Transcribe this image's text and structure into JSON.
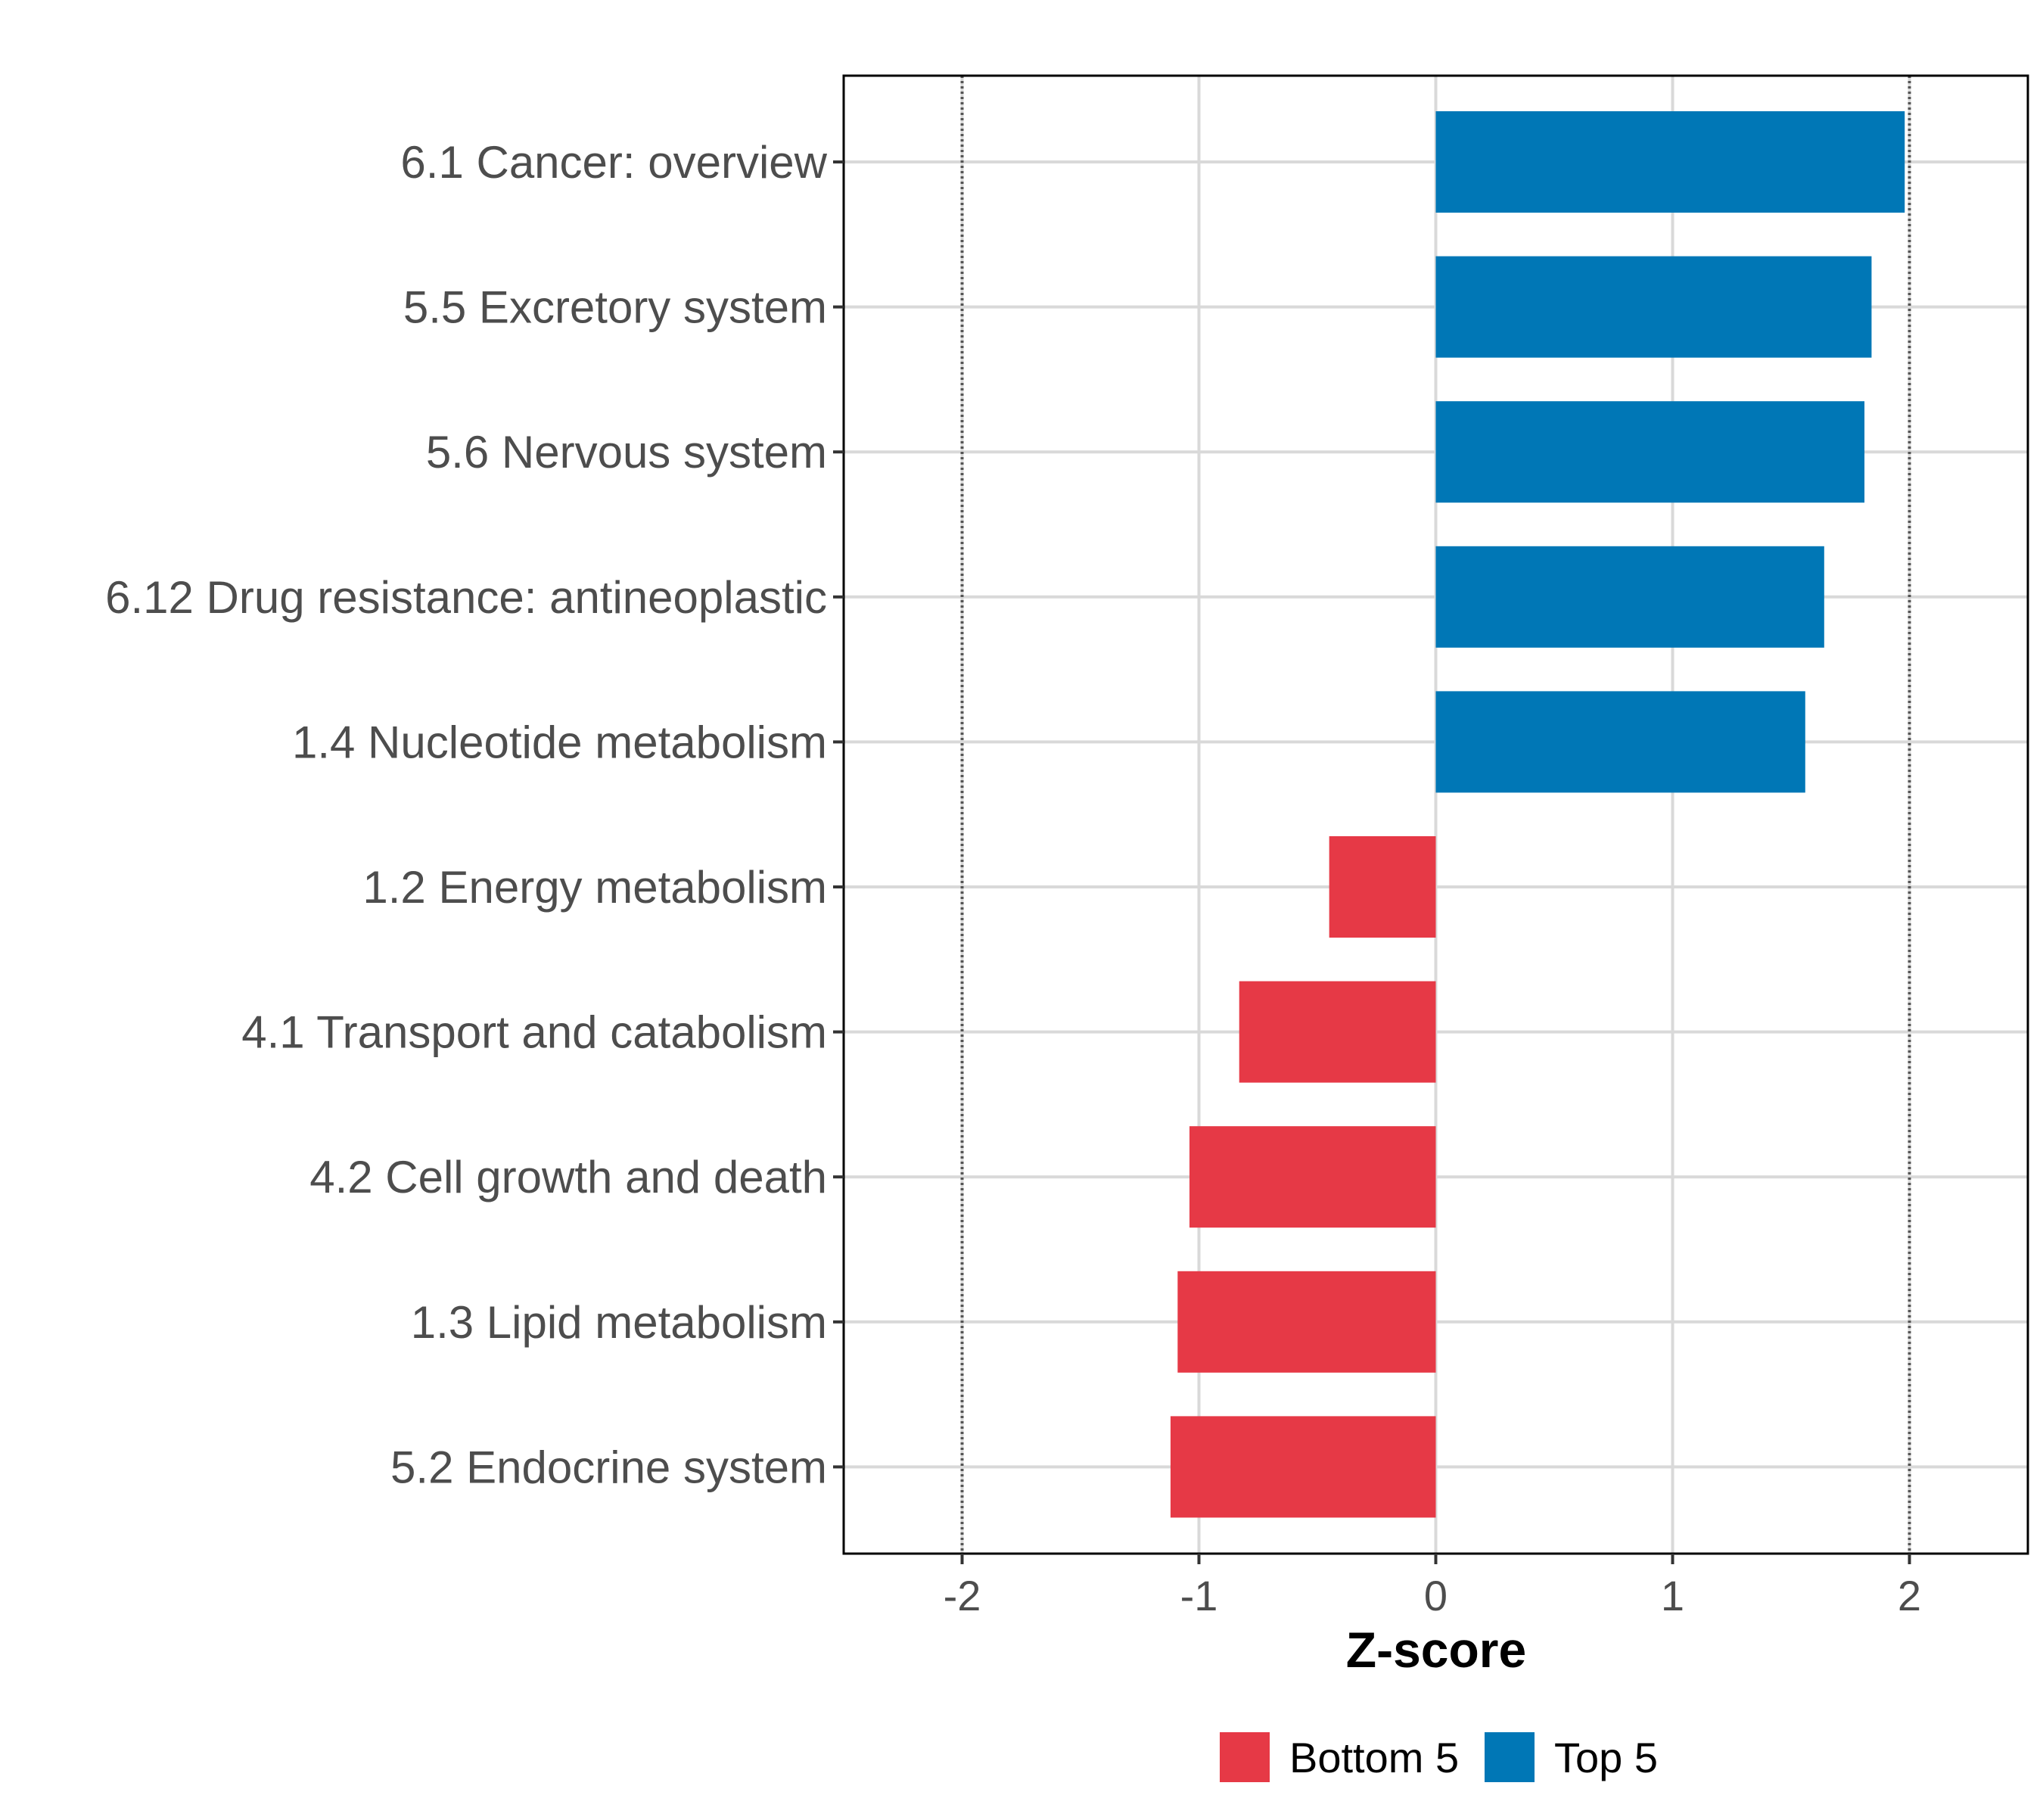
{
  "chart_data": {
    "type": "bar",
    "orientation": "horizontal",
    "title": "",
    "xlabel": "Z-score",
    "ylabel": "",
    "xlim": [
      -2.5,
      2.5
    ],
    "xticks": [
      -2,
      -1,
      0,
      1,
      2
    ],
    "xtick_labels": [
      "-2",
      "-1",
      "0",
      "1",
      "2"
    ],
    "reference_lines": [
      -2,
      2
    ],
    "grid": true,
    "legend_position": "bottom",
    "categories": [
      "6.1 Cancer: overview",
      "5.5 Excretory system",
      "5.6 Nervous system",
      "6.12 Drug resistance: antineoplastic",
      "1.4 Nucleotide metabolism",
      "1.2 Energy metabolism",
      "4.1 Transport and catabolism",
      "4.2 Cell growth and death",
      "1.3 Lipid metabolism",
      "5.2 Endocrine system"
    ],
    "values": [
      1.98,
      1.84,
      1.81,
      1.64,
      1.56,
      -0.45,
      -0.83,
      -1.04,
      -1.09,
      -1.12
    ],
    "groups": [
      "Top 5",
      "Top 5",
      "Top 5",
      "Top 5",
      "Top 5",
      "Bottom 5",
      "Bottom 5",
      "Bottom 5",
      "Bottom 5",
      "Bottom 5"
    ],
    "legend": [
      {
        "name": "Bottom 5",
        "color": "#e63946"
      },
      {
        "name": "Top 5",
        "color": "#0077b6"
      }
    ]
  },
  "colors": {
    "top": "#0077b6",
    "bottom": "#e63946",
    "grid": "#d9d9d9",
    "panel_border": "#000000",
    "reference_line": "#555555"
  }
}
